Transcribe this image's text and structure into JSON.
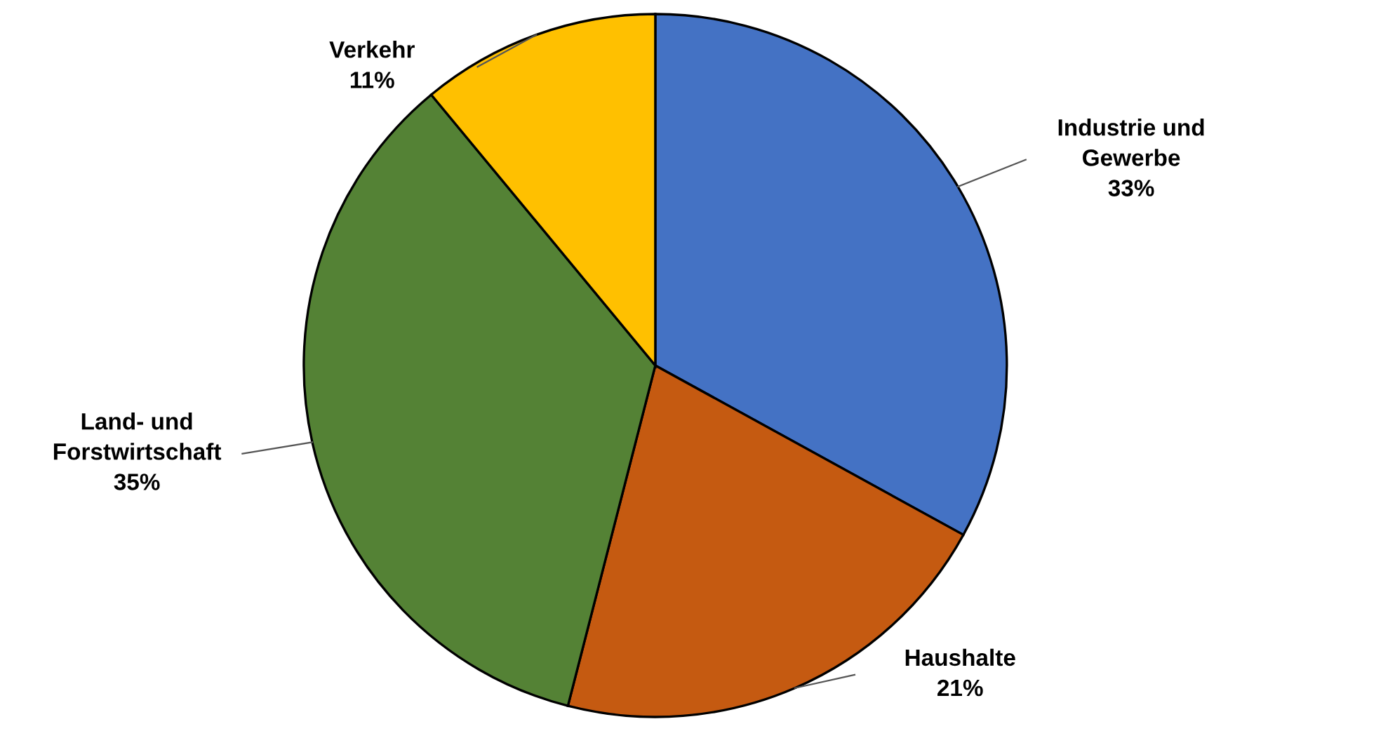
{
  "chart_data": {
    "type": "pie",
    "categories": [
      "Industrie und\nGewerbe",
      "Haushalte",
      "Land- und\nForstwirtschaft",
      "Verkehr"
    ],
    "values": [
      33,
      21,
      35,
      11
    ],
    "colors": [
      "#4472c4",
      "#c55a11",
      "#548235",
      "#ffc000"
    ],
    "value_labels": [
      "33%",
      "21%",
      "35%",
      "11%"
    ],
    "legend": false
  }
}
